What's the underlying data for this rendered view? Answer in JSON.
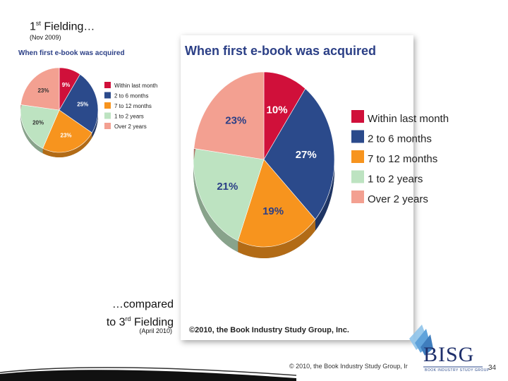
{
  "slide": {
    "title_prefix": "1",
    "title_sup": "st",
    "title_rest": " Fielding…",
    "subtitle_date": "(Nov 2009)",
    "compare_line1": "…compared",
    "compare_line2_prefix": "to 3",
    "compare_line2_sup": "rd",
    "compare_line2_rest": " Fielding",
    "compare_date": "(April 2010)",
    "footer_copyright": "© 2010, the Book Industry Study Group, Ir",
    "page_number": "34",
    "logo_text": "BISG",
    "logo_subtext": "BOOK INDUSTRY STUDY GROUP"
  },
  "chart_data": [
    {
      "type": "pie",
      "title": "When first e-book was acquired",
      "categories": [
        "Within last month",
        "2 to 6 months",
        "7 to 12 months",
        "1 to 2 years",
        "Over 2 years"
      ],
      "values": [
        9,
        25,
        23,
        20,
        23
      ],
      "labels": [
        "9%",
        "25%",
        "23%",
        "20%",
        "23%"
      ],
      "colors": [
        "#d0103a",
        "#2b4a8b",
        "#f7941e",
        "#bde3c1",
        "#f3a091"
      ],
      "legend_position": "right"
    },
    {
      "type": "pie",
      "title": "When first e-book was acquired",
      "categories": [
        "Within last month",
        "2 to 6 months",
        "7 to 12 months",
        "1 to 2 years",
        "Over 2 years"
      ],
      "values": [
        10,
        27,
        19,
        21,
        23
      ],
      "labels": [
        "10%",
        "27%",
        "19%",
        "21%",
        "23%"
      ],
      "colors": [
        "#d0103a",
        "#2b4a8b",
        "#f7941e",
        "#bde3c1",
        "#f3a091"
      ],
      "legend_position": "right",
      "footer": "©2010, the Book Industry Study Group, Inc."
    }
  ]
}
